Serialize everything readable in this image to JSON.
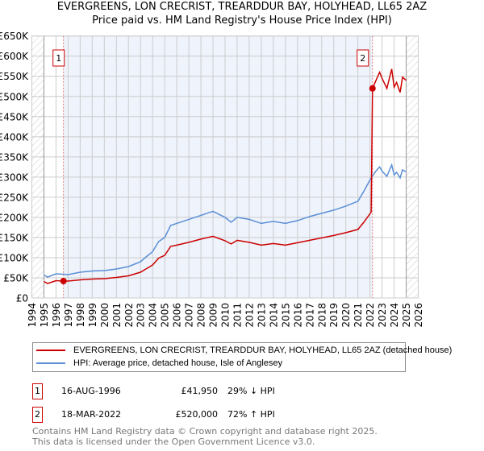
{
  "title": "EVERGREENS, LON CRECRIST, TREARDDUR BAY, HOLYHEAD, LL65 2AZ",
  "subtitle": "Price paid vs. HM Land Registry's House Price Index (HPI)",
  "chart_data": {
    "type": "line",
    "xlim": [
      1994,
      2026
    ],
    "ylim": [
      0,
      650000
    ],
    "x_ticks": [
      "1994",
      "1995",
      "1996",
      "1997",
      "1998",
      "1999",
      "2000",
      "2001",
      "2002",
      "2003",
      "2004",
      "2005",
      "2006",
      "2007",
      "2008",
      "2009",
      "2010",
      "2011",
      "2012",
      "2013",
      "2014",
      "2015",
      "2016",
      "2017",
      "2018",
      "2019",
      "2020",
      "2021",
      "2022",
      "2023",
      "2024",
      "2025",
      "2026"
    ],
    "y_ticks": [
      "£0",
      "£50K",
      "£100K",
      "£150K",
      "£200K",
      "£250K",
      "£300K",
      "£350K",
      "£400K",
      "£450K",
      "£500K",
      "£550K",
      "£600K",
      "£650K"
    ],
    "grid": true,
    "series": [
      {
        "name": "EVERGREENS, LON CRECRIST, TREARDDUR BAY, HOLYHEAD, LL65 2AZ (detached house)",
        "color": "#cc0000",
        "x": [
          1995,
          1995.3,
          1996,
          1996.62,
          1997,
          1998,
          1999,
          2000,
          2001,
          2002,
          2003,
          2003.5,
          2004,
          2004.5,
          2005,
          2005.5,
          2006,
          2007,
          2008,
          2009,
          2010,
          2010.5,
          2011,
          2012,
          2013,
          2014,
          2015,
          2016,
          2017,
          2018,
          2019,
          2020,
          2021,
          2021.5,
          2022.1,
          2022.21,
          2022.5,
          2022.8,
          2023,
          2023.4,
          2023.8,
          2024,
          2024.2,
          2024.5,
          2024.7,
          2025
        ],
        "y": [
          41000,
          36000,
          43000,
          41950,
          42000,
          45000,
          47000,
          48000,
          51000,
          55000,
          64000,
          73000,
          82000,
          99000,
          106000,
          128000,
          131000,
          138000,
          146000,
          153000,
          142000,
          134000,
          143000,
          138000,
          131000,
          135000,
          131000,
          137000,
          143000,
          149000,
          155000,
          162000,
          170000,
          188000,
          213000,
          520000,
          540000,
          560000,
          545000,
          520000,
          568000,
          523000,
          535000,
          510000,
          548000,
          540000
        ]
      },
      {
        "name": "HPI: Average price, detached house, Isle of Anglesey",
        "color": "#5b8fd6",
        "x": [
          1995,
          1995.3,
          1996,
          1996.62,
          1997,
          1998,
          1999,
          2000,
          2001,
          2002,
          2003,
          2003.5,
          2004,
          2004.5,
          2005,
          2005.5,
          2006,
          2007,
          2008,
          2009,
          2010,
          2010.5,
          2011,
          2012,
          2013,
          2014,
          2015,
          2016,
          2017,
          2018,
          2019,
          2020,
          2021,
          2021.5,
          2022.1,
          2022.21,
          2022.5,
          2022.8,
          2023,
          2023.4,
          2023.8,
          2024,
          2024.2,
          2024.5,
          2024.7,
          2025
        ],
        "y": [
          57000,
          52000,
          60000,
          59000,
          58000,
          64000,
          67000,
          68000,
          72000,
          78000,
          90000,
          103000,
          115000,
          140000,
          150000,
          180000,
          185000,
          195000,
          205000,
          215000,
          200000,
          188000,
          200000,
          195000,
          185000,
          190000,
          185000,
          192000,
          202000,
          210000,
          218000,
          228000,
          240000,
          265000,
          298000,
          303000,
          315000,
          325000,
          315000,
          302000,
          330000,
          305000,
          312000,
          298000,
          318000,
          313000
        ]
      }
    ],
    "sales": [
      {
        "label": "1",
        "x": 1996.62,
        "y": 41950
      },
      {
        "label": "2",
        "x": 2022.21,
        "y": 520000
      }
    ],
    "shaded_range": [
      1996.62,
      2022.21
    ],
    "hatched": [
      [
        1994,
        1995
      ],
      [
        2025,
        2026
      ]
    ]
  },
  "legend": [
    {
      "label": "EVERGREENS, LON CRECRIST, TREARDDUR BAY, HOLYHEAD, LL65 2AZ (detached house)",
      "color": "#cc0000"
    },
    {
      "label": "HPI: Average price, detached house, Isle of Anglesey",
      "color": "#5b8fd6"
    }
  ],
  "transactions": [
    {
      "num": "1",
      "date": "16-AUG-1996",
      "price": "£41,950",
      "hpi": "29% ↓ HPI"
    },
    {
      "num": "2",
      "date": "18-MAR-2022",
      "price": "£520,000",
      "hpi": "72% ↑ HPI"
    }
  ],
  "footer": [
    "Contains HM Land Registry data © Crown copyright and database right 2025.",
    "This data is licensed under the Open Government Licence v3.0."
  ]
}
